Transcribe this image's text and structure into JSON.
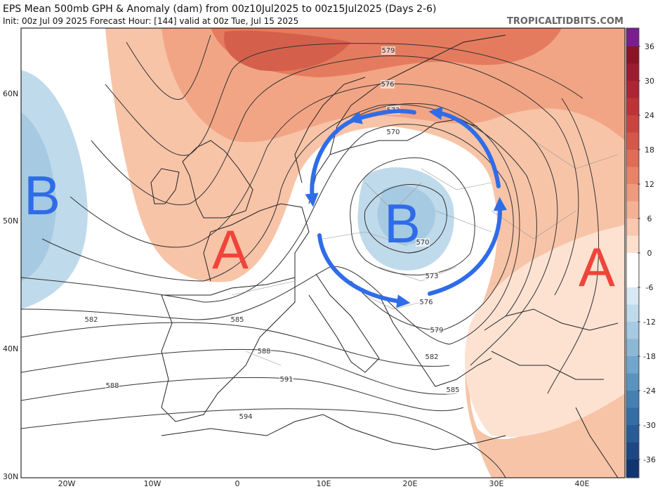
{
  "header": {
    "title": "EPS Mean 500mb GPH & Anomaly (dam) from 00z10Jul2025 to 00z15Jul2025 (Days 2-6)",
    "subtitle": "Init: 00z Jul 09 2025   Forecast Hour: [144]   valid at 00z Tue, Jul 15 2025",
    "site": "TROPICALTIDBITS.COM"
  },
  "axes": {
    "lat_labels": [
      "60N",
      "50N",
      "40N",
      "30N"
    ],
    "lon_labels": [
      "20W",
      "10W",
      "0",
      "10E",
      "20E",
      "30E",
      "40E"
    ]
  },
  "colorbar": {
    "ticks": [
      36,
      30,
      24,
      18,
      12,
      6,
      0,
      -6,
      -12,
      -18,
      -24,
      -30,
      -36
    ],
    "colors": [
      "#7a1e8e",
      "#8a1426",
      "#9c1b2e",
      "#ad2433",
      "#bd3339",
      "#c94440",
      "#d4574b",
      "#de6c58",
      "#e78369",
      "#ee9a7e",
      "#f4b195",
      "#f9c8ae",
      "#fddfcd",
      "#ffffff",
      "#ffffff",
      "#d8e9f3",
      "#bfdaeb",
      "#a6cae1",
      "#8cb8d6",
      "#72a6cb",
      "#5b93bf",
      "#4680b3",
      "#356da5",
      "#295b96",
      "#1e4884",
      "#123470"
    ]
  },
  "map": {
    "contour_labels": [
      579,
      576,
      573,
      570,
      570,
      573,
      576,
      579,
      582,
      585,
      588,
      591,
      588,
      582,
      585,
      594
    ],
    "centers": [
      "B",
      "A",
      "B",
      "A"
    ]
  }
}
